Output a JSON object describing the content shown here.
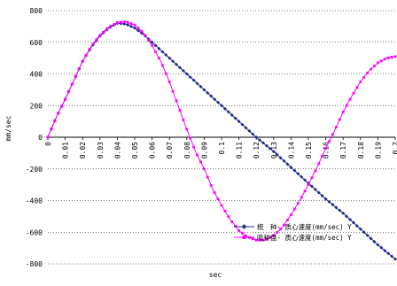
{
  "chart_data": {
    "type": "line",
    "title": "",
    "xlabel": "sec",
    "ylabel": "mm/sec",
    "xlim": [
      0,
      0.2
    ],
    "ylim": [
      -800,
      800
    ],
    "y_ticks": [
      800,
      600,
      400,
      200,
      0,
      -200,
      -400,
      -600,
      -800
    ],
    "y_tick_labels": [
      "800",
      "600",
      "400",
      "200",
      "0",
      "-200",
      "-400",
      "-600",
      "-800"
    ],
    "x_ticks": [
      0,
      0.01,
      0.02,
      0.03,
      0.04,
      0.05,
      0.06,
      0.07,
      0.08,
      0.09,
      0.1,
      0.11,
      0.12,
      0.13,
      0.14,
      0.15,
      0.16,
      0.17,
      0.18,
      0.19,
      0.2
    ],
    "x_tick_labels": [
      "0",
      "0.01",
      "0.02",
      "0.03",
      "0.04",
      "0.05",
      "0.06",
      "0.07",
      "0.08",
      "0.09",
      "0.1",
      "0.11",
      "0.12",
      "0.13",
      "0.14",
      "0.15",
      "0.16",
      "0.17",
      "0.18",
      "0.19",
      "0.2"
    ],
    "grid": {
      "horizontal": true,
      "vertical": false,
      "style": "dotted"
    },
    "legend_position": "bottom-right",
    "series": [
      {
        "name": "梳　种- 质心速度(mm/sec) Y",
        "color": "#1f2a8c",
        "marker": "diamond",
        "points": [
          [
            0,
            0
          ],
          [
            0.005,
            130
          ],
          [
            0.01,
            240
          ],
          [
            0.015,
            360
          ],
          [
            0.02,
            480
          ],
          [
            0.025,
            570
          ],
          [
            0.03,
            640
          ],
          [
            0.035,
            690
          ],
          [
            0.04,
            720
          ],
          [
            0.045,
            715
          ],
          [
            0.05,
            690
          ],
          [
            0.055,
            650
          ],
          [
            0.06,
            600
          ],
          [
            0.07,
            500
          ],
          [
            0.08,
            400
          ],
          [
            0.09,
            300
          ],
          [
            0.1,
            200
          ],
          [
            0.11,
            100
          ],
          [
            0.12,
            0
          ],
          [
            0.13,
            -90
          ],
          [
            0.14,
            -190
          ],
          [
            0.15,
            -290
          ],
          [
            0.16,
            -390
          ],
          [
            0.17,
            -480
          ],
          [
            0.18,
            -580
          ],
          [
            0.19,
            -680
          ],
          [
            0.2,
            -770
          ]
        ]
      },
      {
        "name": "吸种盘- 质心速度(mm/sec) Y",
        "color": "#ff00ff",
        "marker": "square",
        "points": [
          [
            0,
            0
          ],
          [
            0.005,
            130
          ],
          [
            0.01,
            240
          ],
          [
            0.015,
            360
          ],
          [
            0.02,
            480
          ],
          [
            0.025,
            575
          ],
          [
            0.03,
            645
          ],
          [
            0.035,
            695
          ],
          [
            0.04,
            725
          ],
          [
            0.045,
            730
          ],
          [
            0.05,
            710
          ],
          [
            0.055,
            660
          ],
          [
            0.06,
            580
          ],
          [
            0.065,
            480
          ],
          [
            0.07,
            350
          ],
          [
            0.075,
            200
          ],
          [
            0.08,
            50
          ],
          [
            0.085,
            -90
          ],
          [
            0.09,
            -200
          ],
          [
            0.095,
            -330
          ],
          [
            0.1,
            -430
          ],
          [
            0.105,
            -520
          ],
          [
            0.11,
            -590
          ],
          [
            0.115,
            -630
          ],
          [
            0.12,
            -650
          ],
          [
            0.125,
            -650
          ],
          [
            0.13,
            -620
          ],
          [
            0.135,
            -570
          ],
          [
            0.14,
            -490
          ],
          [
            0.145,
            -400
          ],
          [
            0.15,
            -300
          ],
          [
            0.155,
            -190
          ],
          [
            0.16,
            -70
          ],
          [
            0.165,
            40
          ],
          [
            0.17,
            160
          ],
          [
            0.175,
            260
          ],
          [
            0.18,
            350
          ],
          [
            0.185,
            420
          ],
          [
            0.19,
            470
          ],
          [
            0.195,
            500
          ],
          [
            0.2,
            510
          ]
        ]
      }
    ]
  }
}
